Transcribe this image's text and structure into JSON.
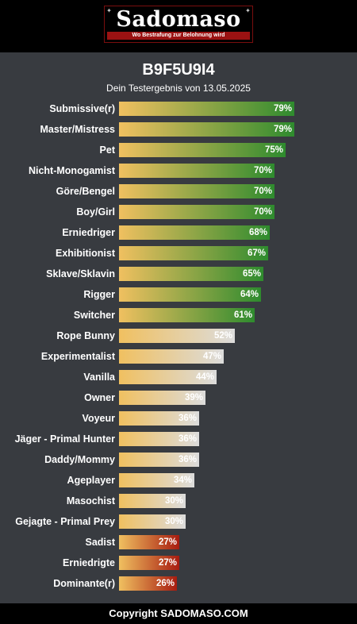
{
  "logo": {
    "title": "Sadomaso",
    "tagline": "Wo Bestrafung zur Belohnung wird"
  },
  "result": {
    "code": "B9F5U9I4",
    "subtitle": "Dein Testergebnis von 13.05.2025"
  },
  "colors": {
    "bar_start": "#f0c060",
    "high": "#2e8b2e",
    "mid": "#dcdcdc",
    "low": "#a81c10"
  },
  "chart_data": {
    "type": "bar",
    "orientation": "horizontal",
    "value_unit": "%",
    "xlim": [
      0,
      100
    ],
    "categories": [
      "Submissive(r)",
      "Master/Mistress",
      "Pet",
      "Nicht-Monogamist",
      "Göre/Bengel",
      "Boy/Girl",
      "Erniedriger",
      "Exhibitionist",
      "Sklave/Sklavin",
      "Rigger",
      "Switcher",
      "Rope Bunny",
      "Experimentalist",
      "Vanilla",
      "Owner",
      "Voyeur",
      "Jäger - Primal Hunter",
      "Daddy/Mommy",
      "Ageplayer",
      "Masochist",
      "Gejagte - Primal Prey",
      "Sadist",
      "Erniedrigte",
      "Dominante(r)"
    ],
    "values": [
      79,
      79,
      75,
      70,
      70,
      70,
      68,
      67,
      65,
      64,
      61,
      52,
      47,
      44,
      39,
      36,
      36,
      36,
      34,
      30,
      30,
      27,
      27,
      26
    ],
    "labels": [
      "79%",
      "79%",
      "75%",
      "70%",
      "70%",
      "70%",
      "68%",
      "67%",
      "65%",
      "64%",
      "61%",
      "52%",
      "47%",
      "44%",
      "39%",
      "36%",
      "36%",
      "36%",
      "34%",
      "30%",
      "30%",
      "27%",
      "27%",
      "26%"
    ]
  },
  "footer": {
    "text": "Copyright SADOMASO.COM"
  }
}
